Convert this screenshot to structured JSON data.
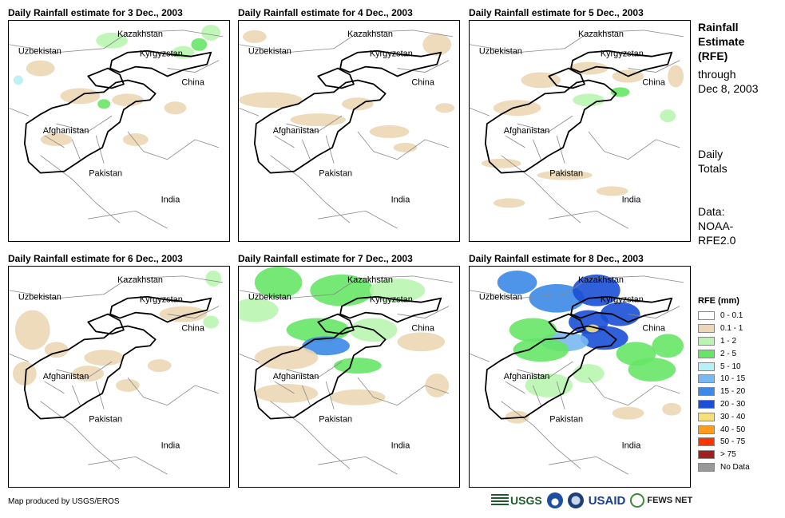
{
  "panels": [
    {
      "title": "Daily Rainfall estimate for 3 Dec., 2003"
    },
    {
      "title": "Daily Rainfall estimate for 4 Dec., 2003"
    },
    {
      "title": "Daily Rainfall estimate for 5 Dec., 2003"
    },
    {
      "title": "Daily Rainfall estimate for 6 Dec., 2003"
    },
    {
      "title": "Daily Rainfall estimate for 7 Dec., 2003"
    },
    {
      "title": "Daily Rainfall estimate for 8 Dec., 2003"
    }
  ],
  "map_labels": {
    "kazakhstan": "Kazakhstan",
    "uzbekistan": "Uzbekistan",
    "kyrgyzstan": "Kyrgyzstan",
    "china": "China",
    "afghanistan": "Afghanistan",
    "pakistan": "Pakistan",
    "india": "India"
  },
  "side": {
    "title_lines": [
      "Rainfall",
      "Estimate",
      "(RFE)"
    ],
    "through_lines": [
      "through",
      "Dec 8, 2003"
    ],
    "daily_lines": [
      "Daily",
      "Totals"
    ],
    "data_lines": [
      "Data:",
      "NOAA-",
      "RFE2.0"
    ]
  },
  "legend": {
    "title": "RFE (mm)",
    "items": [
      {
        "label": "0 - 0.1",
        "color": "#ffffff"
      },
      {
        "label": "0.1 - 1",
        "color": "#ebd7b4"
      },
      {
        "label": "1 - 2",
        "color": "#b9f5b0"
      },
      {
        "label": "2 - 5",
        "color": "#66e566"
      },
      {
        "label": "5 - 10",
        "color": "#b7f0f5"
      },
      {
        "label": "10 - 15",
        "color": "#79b9f2"
      },
      {
        "label": "15 - 20",
        "color": "#3b8ae8"
      },
      {
        "label": "20 - 30",
        "color": "#1a4fd6"
      },
      {
        "label": "30 - 40",
        "color": "#f7e07a"
      },
      {
        "label": "40 - 50",
        "color": "#ff9d1a"
      },
      {
        "label": "50 - 75",
        "color": "#ff3300"
      },
      {
        "label": "> 75",
        "color": "#a01f1f"
      },
      {
        "label": "No Data",
        "color": "#999999"
      }
    ]
  },
  "credit": "Map produced by USGS/EROS",
  "logos": {
    "usgs": "USGS",
    "usaid": "USAID",
    "fews": "FEWS NET"
  }
}
